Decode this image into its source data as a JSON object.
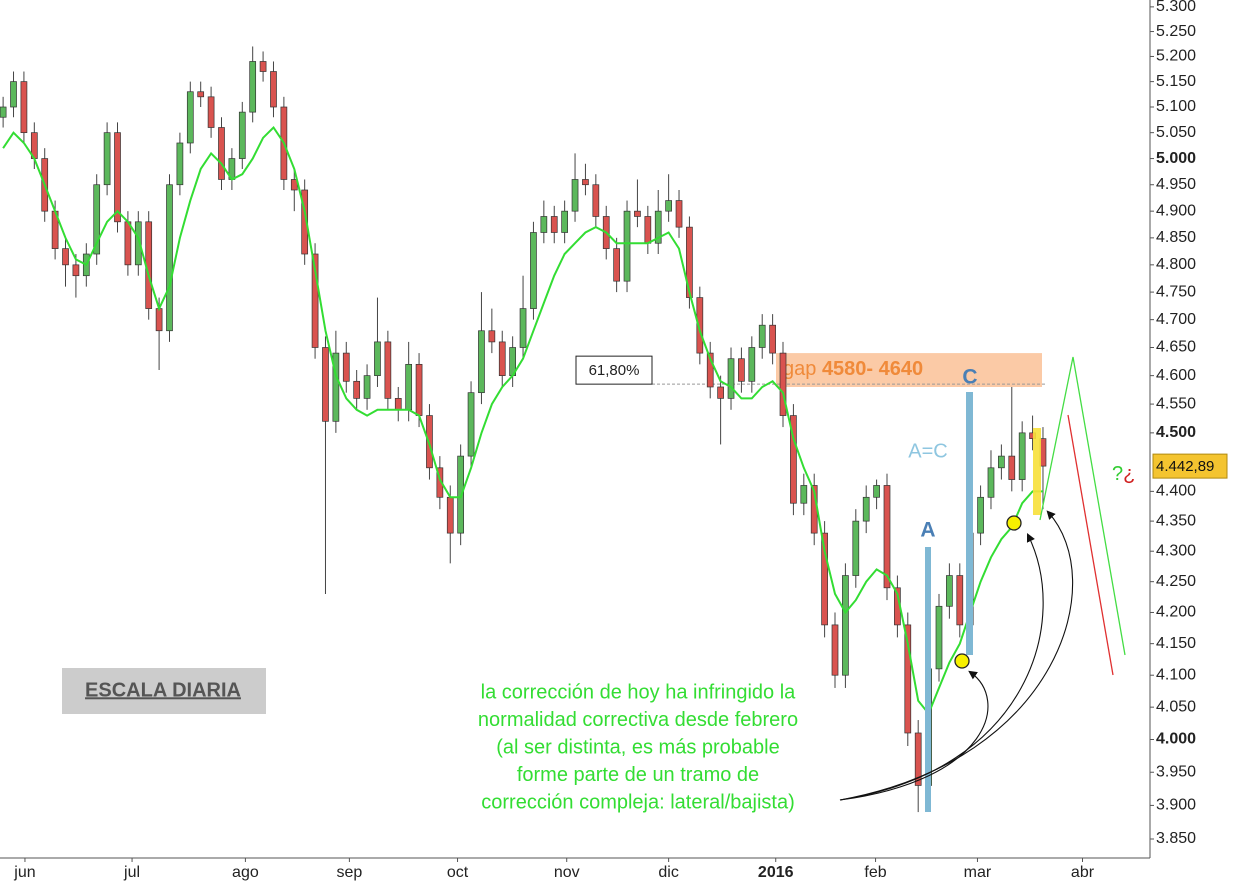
{
  "chart_data": {
    "type": "candlestick",
    "log": true,
    "xlim": [
      -0.3,
      110.1
    ],
    "ylim": [
      3822,
      5314
    ],
    "xticks": [
      {
        "value": 2.1,
        "label": "jun"
      },
      {
        "value": 12.4,
        "label": "jul"
      },
      {
        "value": 23.3,
        "label": "ago"
      },
      {
        "value": 33.3,
        "label": "sep"
      },
      {
        "value": 43.7,
        "label": "oct"
      },
      {
        "value": 54.2,
        "label": "nov"
      },
      {
        "value": 64,
        "label": "dic"
      },
      {
        "value": 74.3,
        "label": "2016"
      },
      {
        "value": 83.9,
        "label": "feb"
      },
      {
        "value": 93.7,
        "label": "mar"
      },
      {
        "value": 103.8,
        "label": "abr"
      }
    ],
    "yticks": [
      {
        "value": 5300,
        "label": "5.300"
      },
      {
        "value": 5250,
        "label": "5.250"
      },
      {
        "value": 5200,
        "label": "5.200"
      },
      {
        "value": 5150,
        "label": "5.150"
      },
      {
        "value": 5100,
        "label": "5.100"
      },
      {
        "value": 5050,
        "label": "5.050"
      },
      {
        "value": 5000,
        "label": "5.000"
      },
      {
        "value": 4950,
        "label": "4.950"
      },
      {
        "value": 4900,
        "label": "4.900"
      },
      {
        "value": 4850,
        "label": "4.850"
      },
      {
        "value": 4800,
        "label": "4.800"
      },
      {
        "value": 4750,
        "label": "4.750"
      },
      {
        "value": 4700,
        "label": "4.700"
      },
      {
        "value": 4650,
        "label": "4.650"
      },
      {
        "value": 4600,
        "label": "4.600"
      },
      {
        "value": 4550,
        "label": "4.550"
      },
      {
        "value": 4500,
        "label": "4.500"
      },
      {
        "value": 4400,
        "label": "4.400"
      },
      {
        "value": 4350,
        "label": "4.350"
      },
      {
        "value": 4300,
        "label": "4.300"
      },
      {
        "value": 4250,
        "label": "4.250"
      },
      {
        "value": 4200,
        "label": "4.200"
      },
      {
        "value": 4150,
        "label": "4.150"
      },
      {
        "value": 4100,
        "label": "4.100"
      },
      {
        "value": 4050,
        "label": "4.050"
      },
      {
        "value": 4000,
        "label": "4.000"
      },
      {
        "value": 3950,
        "label": "3.950"
      },
      {
        "value": 3900,
        "label": "3.900"
      },
      {
        "value": 3850,
        "label": "3.850"
      }
    ],
    "up_color": "#5cb85c",
    "down_color": "#d9534f",
    "ma_color": "#33dd33",
    "ohlc": [
      [
        5080,
        5120,
        5060,
        5100
      ],
      [
        5100,
        5170,
        5080,
        5150
      ],
      [
        5150,
        5170,
        5030,
        5050
      ],
      [
        5050,
        5070,
        4980,
        5000
      ],
      [
        5000,
        5020,
        4880,
        4900
      ],
      [
        4900,
        4920,
        4810,
        4830
      ],
      [
        4830,
        4850,
        4760,
        4800
      ],
      [
        4800,
        4820,
        4740,
        4780
      ],
      [
        4780,
        4840,
        4760,
        4820
      ],
      [
        4820,
        4970,
        4800,
        4950
      ],
      [
        4950,
        5070,
        4930,
        5050
      ],
      [
        5050,
        5070,
        4860,
        4880
      ],
      [
        4880,
        4900,
        4780,
        4800
      ],
      [
        4800,
        4900,
        4780,
        4880
      ],
      [
        4880,
        4900,
        4700,
        4720
      ],
      [
        4720,
        4740,
        4610,
        4680
      ],
      [
        4680,
        4970,
        4660,
        4950
      ],
      [
        4950,
        5050,
        4930,
        5030
      ],
      [
        5030,
        5150,
        5010,
        5130
      ],
      [
        5130,
        5150,
        5100,
        5120
      ],
      [
        5120,
        5140,
        5040,
        5060
      ],
      [
        5060,
        5080,
        4940,
        4960
      ],
      [
        4960,
        5020,
        4940,
        5000
      ],
      [
        5000,
        5110,
        4980,
        5090
      ],
      [
        5090,
        5220,
        5070,
        5190
      ],
      [
        5190,
        5210,
        5150,
        5170
      ],
      [
        5170,
        5190,
        5080,
        5100
      ],
      [
        5100,
        5120,
        4940,
        4960
      ],
      [
        4960,
        4980,
        4900,
        4940
      ],
      [
        4940,
        4960,
        4800,
        4820
      ],
      [
        4820,
        4840,
        4630,
        4650
      ],
      [
        4650,
        4670,
        4230,
        4520
      ],
      [
        4520,
        4680,
        4500,
        4640
      ],
      [
        4640,
        4660,
        4570,
        4590
      ],
      [
        4590,
        4610,
        4540,
        4560
      ],
      [
        4560,
        4620,
        4540,
        4600
      ],
      [
        4600,
        4740,
        4580,
        4660
      ],
      [
        4660,
        4680,
        4540,
        4560
      ],
      [
        4560,
        4580,
        4520,
        4540
      ],
      [
        4540,
        4660,
        4520,
        4620
      ],
      [
        4620,
        4640,
        4510,
        4530
      ],
      [
        4530,
        4550,
        4420,
        4440
      ],
      [
        4440,
        4460,
        4370,
        4390
      ],
      [
        4390,
        4410,
        4280,
        4330
      ],
      [
        4330,
        4480,
        4310,
        4460
      ],
      [
        4460,
        4590,
        4440,
        4570
      ],
      [
        4570,
        4750,
        4550,
        4680
      ],
      [
        4680,
        4720,
        4640,
        4660
      ],
      [
        4660,
        4680,
        4580,
        4600
      ],
      [
        4600,
        4670,
        4580,
        4650
      ],
      [
        4650,
        4780,
        4630,
        4720
      ],
      [
        4720,
        4880,
        4700,
        4860
      ],
      [
        4860,
        4920,
        4840,
        4890
      ],
      [
        4890,
        4910,
        4840,
        4860
      ],
      [
        4860,
        4920,
        4840,
        4900
      ],
      [
        4900,
        5010,
        4880,
        4960
      ],
      [
        4960,
        4990,
        4930,
        4950
      ],
      [
        4950,
        4970,
        4870,
        4890
      ],
      [
        4890,
        4910,
        4810,
        4830
      ],
      [
        4830,
        4850,
        4750,
        4770
      ],
      [
        4770,
        4920,
        4750,
        4900
      ],
      [
        4900,
        4960,
        4870,
        4890
      ],
      [
        4890,
        4910,
        4820,
        4840
      ],
      [
        4840,
        4940,
        4820,
        4900
      ],
      [
        4900,
        4970,
        4880,
        4920
      ],
      [
        4920,
        4940,
        4850,
        4870
      ],
      [
        4870,
        4890,
        4720,
        4740
      ],
      [
        4740,
        4760,
        4620,
        4640
      ],
      [
        4640,
        4660,
        4560,
        4580
      ],
      [
        4580,
        4600,
        4480,
        4560
      ],
      [
        4560,
        4650,
        4540,
        4630
      ],
      [
        4630,
        4650,
        4570,
        4590
      ],
      [
        4590,
        4670,
        4570,
        4650
      ],
      [
        4650,
        4710,
        4630,
        4690
      ],
      [
        4690,
        4710,
        4620,
        4640
      ],
      [
        4640,
        4660,
        4510,
        4530
      ],
      [
        4530,
        4550,
        4360,
        4380
      ],
      [
        4380,
        4430,
        4360,
        4410
      ],
      [
        4410,
        4430,
        4310,
        4330
      ],
      [
        4330,
        4350,
        4160,
        4180
      ],
      [
        4180,
        4200,
        4080,
        4100
      ],
      [
        4100,
        4280,
        4080,
        4260
      ],
      [
        4260,
        4370,
        4240,
        4350
      ],
      [
        4350,
        4410,
        4330,
        4390
      ],
      [
        4390,
        4420,
        4370,
        4410
      ],
      [
        4410,
        4430,
        4220,
        4240
      ],
      [
        4240,
        4260,
        4160,
        4180
      ],
      [
        4180,
        4200,
        3990,
        4010
      ],
      [
        4010,
        4030,
        3890,
        3930
      ],
      [
        3930,
        4130,
        3910,
        4110
      ],
      [
        4110,
        4230,
        4090,
        4210
      ],
      [
        4210,
        4280,
        4190,
        4260
      ],
      [
        4260,
        4280,
        4160,
        4180
      ],
      [
        4180,
        4350,
        4160,
        4330
      ],
      [
        4330,
        4410,
        4310,
        4390
      ],
      [
        4390,
        4470,
        4370,
        4440
      ],
      [
        4440,
        4480,
        4420,
        4460
      ],
      [
        4460,
        4580,
        4400,
        4420
      ],
      [
        4420,
        4520,
        4400,
        4500
      ],
      [
        4500,
        4530,
        4470,
        4490
      ],
      [
        4490,
        4510,
        4370,
        4442.89
      ]
    ],
    "moving_average": [
      5020,
      5050,
      5030,
      5000,
      4950,
      4900,
      4850,
      4810,
      4800,
      4840,
      4880,
      4900,
      4880,
      4850,
      4780,
      4720,
      4760,
      4850,
      4920,
      4980,
      5010,
      4990,
      4960,
      4970,
      5000,
      5040,
      5060,
      5030,
      4980,
      4900,
      4790,
      4680,
      4600,
      4560,
      4540,
      4530,
      4540,
      4540,
      4540,
      4540,
      4530,
      4480,
      4420,
      4390,
      4390,
      4440,
      4500,
      4550,
      4580,
      4600,
      4630,
      4680,
      4730,
      4780,
      4820,
      4840,
      4860,
      4870,
      4860,
      4840,
      4840,
      4840,
      4840,
      4850,
      4860,
      4830,
      4750,
      4680,
      4630,
      4590,
      4580,
      4560,
      4560,
      4580,
      4590,
      4570,
      4490,
      4440,
      4400,
      4300,
      4230,
      4200,
      4220,
      4250,
      4270,
      4260,
      4230,
      4150,
      4060,
      4040,
      4080,
      4120,
      4150,
      4200,
      4250,
      4290,
      4320,
      4340,
      4380,
      4400,
      4400
    ],
    "last_price": {
      "value": 4442.89,
      "label": "4.442,89"
    },
    "fib_level": {
      "value": 4585,
      "label": "61,80%"
    },
    "gap_zone": {
      "label": "gap",
      "range": "4580- 4640",
      "low": 4580,
      "high": 4640
    },
    "annotations": {
      "a": "A",
      "c": "C",
      "a_equals_c": "A=C",
      "question_marks": [
        "?",
        "¿"
      ],
      "scale": "ESCALA DIARIA",
      "comment": [
        "la corrección de hoy ha infringido la",
        "normalidad correctiva desde febrero",
        "(al ser distinta, es más probable",
        "forme parte de un tramo de",
        "corrección compleja: lateral/bajista)"
      ]
    }
  }
}
